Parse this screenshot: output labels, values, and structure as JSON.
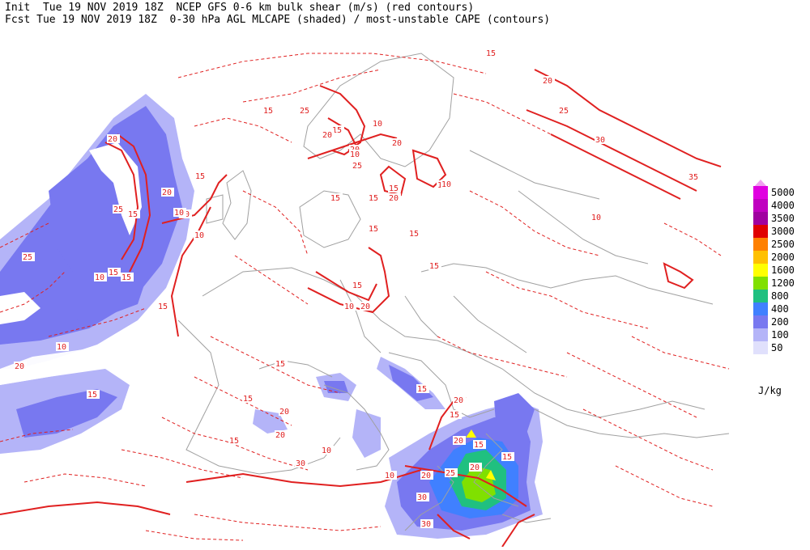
{
  "header": {
    "line1": "Init  Tue 19 NOV 2019 18Z  NCEP GFS 0-6 km bulk shear (m/s) (red contours)",
    "line2": "Fcst Tue 19 NOV 2019 18Z  0-30 hPa AGL MLCAPE (shaded) / most-unstable CAPE (contours)"
  },
  "legend": {
    "units": "J/kg",
    "items": [
      {
        "label": "5000",
        "color": "#e000e0"
      },
      {
        "label": "4000",
        "color": "#c000c0"
      },
      {
        "label": "3500",
        "color": "#a000a0"
      },
      {
        "label": "3000",
        "color": "#e00000"
      },
      {
        "label": "2500",
        "color": "#ff8000"
      },
      {
        "label": "2000",
        "color": "#ffc000"
      },
      {
        "label": "1600",
        "color": "#ffff00"
      },
      {
        "label": "1200",
        "color": "#80e000"
      },
      {
        "label": "800",
        "color": "#20c080"
      },
      {
        "label": "400",
        "color": "#4080ff"
      },
      {
        "label": "200",
        "color": "#7878f0"
      },
      {
        "label": "100",
        "color": "#b4b4f8"
      },
      {
        "label": "50",
        "color": "#e0e0fc"
      }
    ]
  },
  "map": {
    "shear_color": "#e02020",
    "coast_color": "#a0a0a0",
    "contour_labels": [
      "20",
      "15",
      "10",
      "15",
      "15",
      "20",
      "10",
      "15",
      "25",
      "10",
      "15",
      "25",
      "15",
      "25",
      "15",
      "20",
      "10",
      "20",
      "10",
      "15",
      "15",
      "20",
      "25",
      "15",
      "20",
      "15",
      "30",
      "35",
      "20",
      "25",
      "15",
      "10",
      "10",
      "15",
      "20",
      "10",
      "15",
      "15",
      "15",
      "15",
      "20",
      "10",
      "15",
      "20",
      "30",
      "10",
      "15",
      "20",
      "20",
      "30",
      "15",
      "20",
      "25",
      "15",
      "30",
      "20",
      "15",
      "15",
      "10",
      "20",
      "15",
      "10"
    ]
  }
}
